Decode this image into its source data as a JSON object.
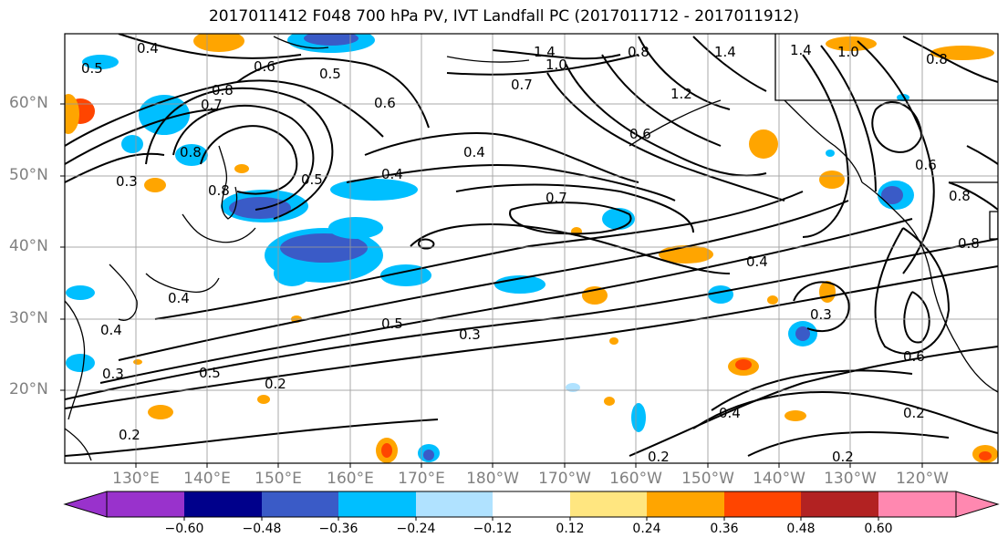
{
  "figure": {
    "title": "2017011412 F048 700 hPa PV, IVT Landfall PC (2017011712 - 2017011912)"
  },
  "axes": {
    "lat_labels": [
      "60°N",
      "50°N",
      "40°N",
      "30°N",
      "20°N"
    ],
    "lon_labels": [
      "130°E",
      "140°E",
      "150°E",
      "160°E",
      "170°E",
      "180°W",
      "170°W",
      "160°W",
      "150°W",
      "140°W",
      "130°W",
      "120°W"
    ],
    "label_color": "#808080",
    "grid": true
  },
  "contour_labels": [
    "0.4",
    "0.6",
    "0.5",
    "1.4",
    "1.0",
    "0.7",
    "0.8",
    "1.4",
    "1.2",
    "0.8",
    "1.4",
    "1.0",
    "0.8",
    "0.7",
    "0.8",
    "0.5",
    "0.4",
    "0.4",
    "0.6",
    "0.7",
    "0.8",
    "0.5",
    "0.6",
    "0.8",
    "0.8",
    "0.3",
    "0.4",
    "0.3",
    "0.4",
    "0.5",
    "0.3",
    "0.2",
    "0.5",
    "0.2",
    "0.4",
    "0.3",
    "0.6",
    "0.2",
    "0.2",
    "0.2",
    "0.4",
    "0.6"
  ],
  "colorbar": {
    "tick_labels": [
      "−0.60",
      "−0.48",
      "−0.36",
      "−0.24",
      "−0.12",
      "0.12",
      "0.24",
      "0.36",
      "0.48",
      "0.60"
    ],
    "colors": [
      "#9932cc",
      "#00008b",
      "#3a5bc7",
      "#00bfff",
      "#b0e2ff",
      "#ffffff",
      "#ffe680",
      "#ffa500",
      "#ff4500",
      "#b22222",
      "#ff88b0"
    ],
    "extend": "both"
  }
}
